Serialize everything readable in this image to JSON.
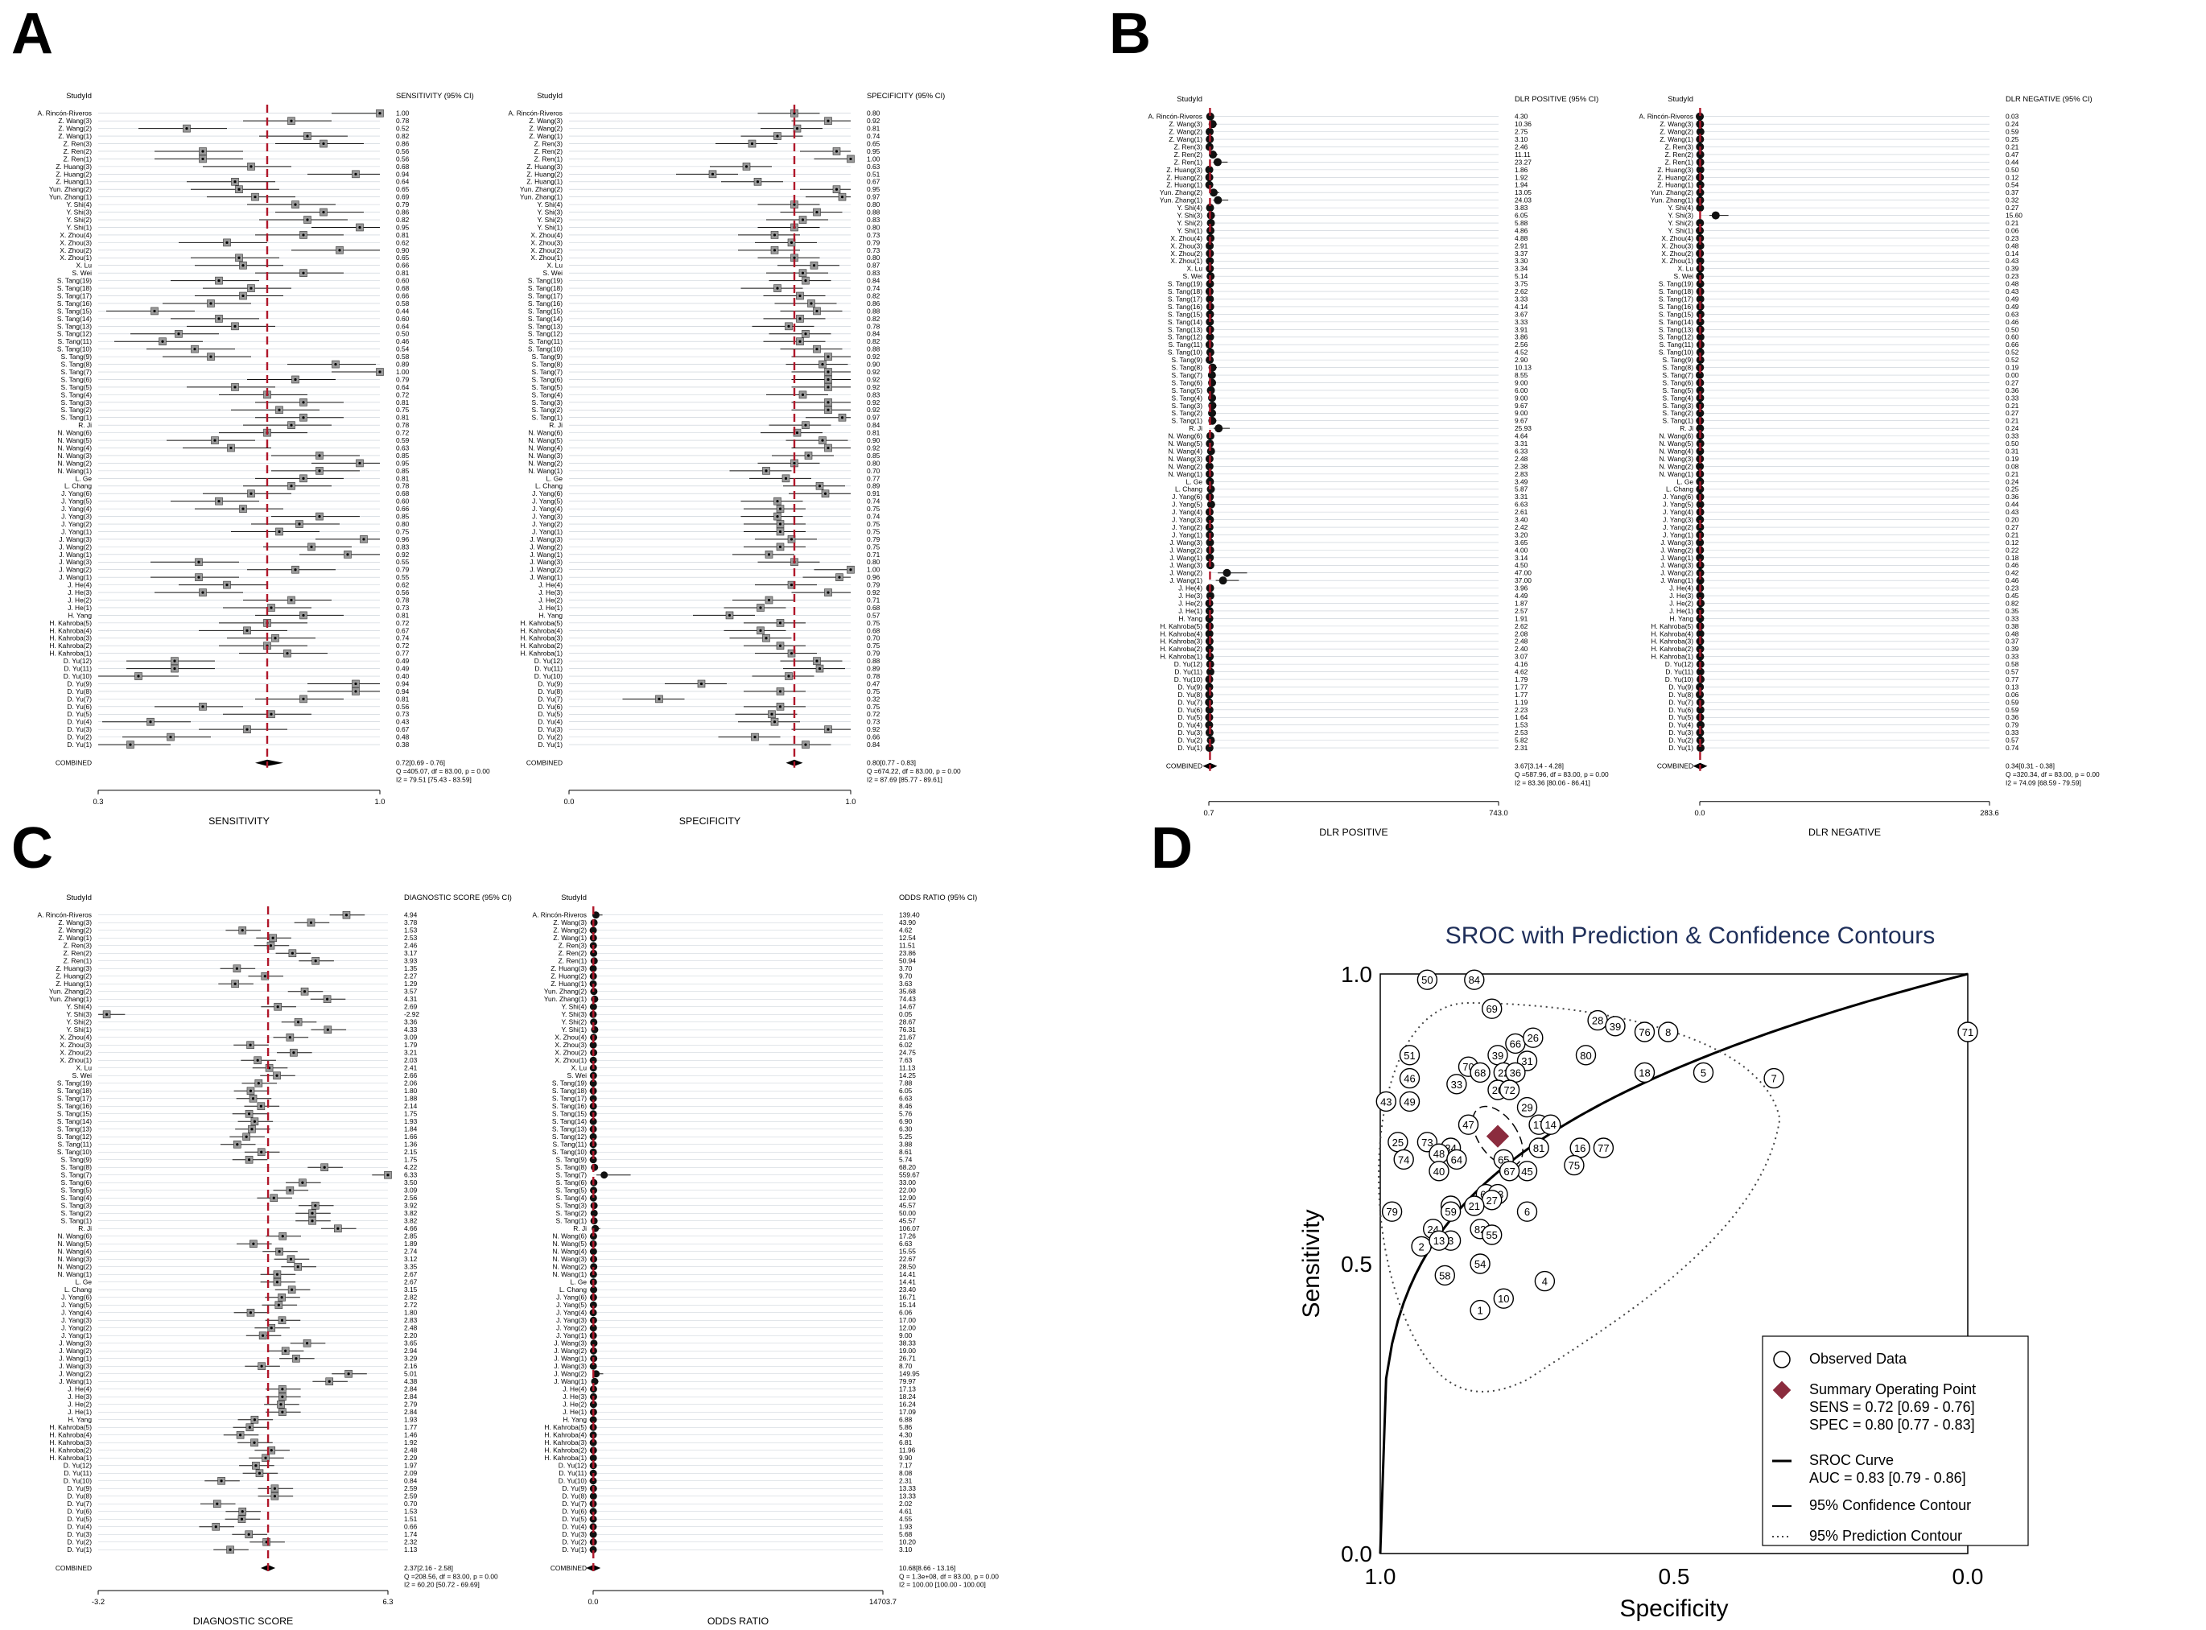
{
  "panels": {
    "A": "A",
    "B": "B",
    "C": "C",
    "D": "D"
  },
  "study_ids": [
    "A. Rincón-Riveros",
    "Z. Wang(3)",
    "Z. Wang(2)",
    "Z. Wang(1)",
    "Z. Ren(3)",
    "Z. Ren(2)",
    "Z. Ren(1)",
    "Z. Huang(3)",
    "Z. Huang(2)",
    "Z. Huang(1)",
    "Yun. Zhang(2)",
    "Yun. Zhang(1)",
    "Y. Shi(4)",
    "Y. Shi(3)",
    "Y. Shi(2)",
    "Y. Shi(1)",
    "X. Zhou(4)",
    "X. Zhou(3)",
    "X. Zhou(2)",
    "X. Zhou(1)",
    "X. Lu",
    "S. Wei",
    "S. Tang(19)",
    "S. Tang(18)",
    "S. Tang(17)",
    "S. Tang(16)",
    "S. Tang(15)",
    "S. Tang(14)",
    "S. Tang(13)",
    "S. Tang(12)",
    "S. Tang(11)",
    "S. Tang(10)",
    "S. Tang(9)",
    "S. Tang(8)",
    "S. Tang(7)",
    "S. Tang(6)",
    "S. Tang(5)",
    "S. Tang(4)",
    "S. Tang(3)",
    "S. Tang(2)",
    "S. Tang(1)",
    "R. Ji",
    "N. Wang(6)",
    "N. Wang(5)",
    "N. Wang(4)",
    "N. Wang(3)",
    "N. Wang(2)",
    "N. Wang(1)",
    "L. Ge",
    "L. Chang",
    "J. Yang(6)",
    "J. Yang(5)",
    "J. Yang(4)",
    "J. Yang(3)",
    "J. Yang(2)",
    "J. Yang(1)",
    "J. Wang(3)",
    "J. Wang(2)",
    "J. Wang(1)",
    "J. Wang(3)",
    "J. Wang(2)",
    "J. Wang(1)",
    "J. He(4)",
    "J. He(3)",
    "J. He(2)",
    "J. He(1)",
    "H. Yang",
    "H. Kahroba(5)",
    "H. Kahroba(4)",
    "H. Kahroba(3)",
    "H. Kahroba(2)",
    "H. Kahroba(1)",
    "D. Yu(12)",
    "D. Yu(11)",
    "D. Yu(10)",
    "D. Yu(9)",
    "D. Yu(8)",
    "D. Yu(7)",
    "D. Yu(6)",
    "D. Yu(5)",
    "D. Yu(4)",
    "D. Yu(3)",
    "D. Yu(2)",
    "D. Yu(1)"
  ],
  "chart_data": [
    {
      "type": "forest",
      "panel": "A-left",
      "column_header": "StudyId",
      "stat_header": "SENSITIVITY (95% CI)",
      "xlabel": "SENSITIVITY",
      "xlim": [
        0.3,
        1.0
      ],
      "xticks": [
        "0.3",
        "1.0"
      ],
      "summary_label": "COMBINED",
      "pooled": 0.72,
      "pooled_ci": [
        0.69,
        0.76
      ],
      "pooled_text": "0.72[0.69 - 0.76]",
      "stats_text": [
        "Q =405.07, df = 83.00, p = 0.00",
        "I2 = 79.51 [75.43 - 83.59]"
      ],
      "values": [
        1.0,
        0.78,
        0.52,
        0.82,
        0.86,
        0.56,
        0.56,
        0.68,
        0.94,
        0.64,
        0.65,
        0.69,
        0.79,
        0.86,
        0.82,
        0.95,
        0.81,
        0.62,
        0.9,
        0.65,
        0.66,
        0.81,
        0.6,
        0.68,
        0.66,
        0.58,
        0.44,
        0.6,
        0.64,
        0.5,
        0.46,
        0.54,
        0.58,
        0.89,
        1.0,
        0.79,
        0.64,
        0.72,
        0.81,
        0.75,
        0.81,
        0.78,
        0.72,
        0.59,
        0.63,
        0.85,
        0.95,
        0.85,
        0.81,
        0.78,
        0.68,
        0.6,
        0.66,
        0.85,
        0.8,
        0.75,
        0.96,
        0.83,
        0.92,
        0.55,
        0.79,
        0.55,
        0.62,
        0.56,
        0.78,
        0.73,
        0.81,
        0.72,
        0.67,
        0.74,
        0.72,
        0.77,
        0.49,
        0.49,
        0.4,
        0.94,
        0.94,
        0.81,
        0.56,
        0.73,
        0.43,
        0.67,
        0.48,
        0.38
      ]
    },
    {
      "type": "forest",
      "panel": "A-right",
      "column_header": "StudyId",
      "stat_header": "SPECIFICITY (95% CI)",
      "xlabel": "SPECIFICITY",
      "xlim": [
        0.0,
        1.0
      ],
      "xticks": [
        "0.0",
        "1.0"
      ],
      "summary_label": "COMBINED",
      "pooled": 0.8,
      "pooled_ci": [
        0.77,
        0.83
      ],
      "pooled_text": "0.80[0.77 - 0.83]",
      "stats_text": [
        "Q =674.22, df = 83.00, p = 0.00",
        "I2 = 87.69 [85.77 - 89.61]"
      ],
      "values": [
        0.8,
        0.92,
        0.81,
        0.74,
        0.65,
        0.95,
        1.0,
        0.63,
        0.51,
        0.67,
        0.95,
        0.97,
        0.8,
        0.88,
        0.83,
        0.8,
        0.73,
        0.79,
        0.73,
        0.8,
        0.87,
        0.83,
        0.84,
        0.74,
        0.82,
        0.86,
        0.88,
        0.82,
        0.78,
        0.84,
        0.82,
        0.88,
        0.92,
        0.9,
        0.92,
        0.92,
        0.92,
        0.83,
        0.92,
        0.92,
        0.97,
        0.84,
        0.81,
        0.9,
        0.92,
        0.85,
        0.8,
        0.7,
        0.77,
        0.89,
        0.91,
        0.74,
        0.75,
        0.74,
        0.75,
        0.75,
        0.79,
        0.75,
        0.71,
        0.8,
        1.0,
        0.96,
        0.79,
        0.92,
        0.71,
        0.68,
        0.57,
        0.75,
        0.68,
        0.7,
        0.75,
        0.79,
        0.88,
        0.89,
        0.78,
        0.47,
        0.75,
        0.32,
        0.75,
        0.72,
        0.73,
        0.92,
        0.66,
        0.84
      ]
    },
    {
      "type": "forest",
      "panel": "B-left",
      "column_header": "StudyId",
      "stat_header": "DLR POSITIVE (95% CI)",
      "xlabel": "DLR POSITIVE",
      "xlim": [
        0.7,
        743.0
      ],
      "xticks": [
        "0.7",
        "743.0"
      ],
      "summary_label": "COMBINED",
      "pooled": 3.67,
      "pooled_ci": [
        3.14,
        4.28
      ],
      "pooled_text": "3.67[3.14 - 4.28]",
      "stats_text": [
        "Q =587.96, df = 83.00, p = 0.00",
        "I2 = 83.36 [80.06 - 86.41]"
      ],
      "values": [
        4.3,
        10.36,
        2.75,
        3.1,
        2.46,
        11.11,
        23.27,
        1.86,
        1.92,
        1.94,
        13.05,
        24.03,
        3.83,
        6.05,
        5.88,
        4.86,
        4.88,
        2.91,
        3.37,
        3.3,
        3.34,
        5.14,
        3.75,
        2.62,
        3.33,
        4.14,
        3.67,
        3.33,
        3.91,
        3.86,
        2.56,
        4.52,
        2.9,
        10.13,
        8.55,
        9.0,
        6.0,
        9.0,
        9.67,
        9.0,
        9.67,
        25.93,
        4.64,
        3.31,
        6.33,
        2.48,
        2.38,
        2.83,
        3.49,
        5.87,
        3.31,
        6.63,
        2.61,
        3.4,
        2.42,
        3.2,
        3.65,
        4.0,
        3.14,
        4.5,
        47.0,
        37.0,
        3.96,
        4.49,
        1.87,
        2.57,
        1.91,
        2.62,
        2.08,
        2.48,
        2.4,
        3.07,
        4.16,
        4.62,
        1.79,
        1.77,
        1.77,
        1.19,
        2.23,
        1.64,
        1.53,
        2.53,
        5.82,
        2.31
      ]
    },
    {
      "type": "forest",
      "panel": "B-right",
      "column_header": "StudyId",
      "stat_header": "DLR NEGATIVE (95% CI)",
      "xlabel": "DLR NEGATIVE",
      "xlim": [
        0.0,
        283.6
      ],
      "xticks": [
        "0.0",
        "283.6"
      ],
      "summary_label": "COMBINED",
      "pooled": 0.34,
      "pooled_ci": [
        0.31,
        0.38
      ],
      "pooled_text": "0.34[0.31 - 0.38]",
      "stats_text": [
        "Q =320.34, df = 83.00, p = 0.00",
        "I2 = 74.09 [68.59 - 79.59]"
      ],
      "values": [
        0.03,
        0.24,
        0.59,
        0.25,
        0.21,
        0.47,
        0.44,
        0.5,
        0.12,
        0.54,
        0.37,
        0.32,
        0.27,
        15.6,
        0.21,
        0.06,
        0.23,
        0.48,
        0.14,
        0.43,
        0.39,
        0.23,
        0.48,
        0.43,
        0.49,
        0.49,
        0.63,
        0.46,
        0.5,
        0.6,
        0.66,
        0.52,
        0.52,
        0.19,
        0.0,
        0.27,
        0.36,
        0.33,
        0.21,
        0.27,
        0.21,
        0.24,
        0.33,
        0.5,
        0.31,
        0.19,
        0.08,
        0.21,
        0.24,
        0.25,
        0.36,
        0.44,
        0.43,
        0.2,
        0.27,
        0.21,
        0.12,
        0.22,
        0.18,
        0.46,
        0.42,
        0.46,
        0.23,
        0.45,
        0.82,
        0.35,
        0.33,
        0.38,
        0.48,
        0.37,
        0.39,
        0.33,
        0.58,
        0.57,
        0.77,
        0.13,
        0.06,
        0.59,
        0.59,
        0.36,
        0.79,
        0.33,
        0.57,
        0.74
      ]
    },
    {
      "type": "forest",
      "panel": "C-left",
      "column_header": "StudyId",
      "stat_header": "DIAGNOSTIC SCORE (95% CI)",
      "xlabel": "DIAGNOSTIC SCORE",
      "xlim": [
        -3.2,
        6.3
      ],
      "xticks": [
        "-3.2",
        "6.3"
      ],
      "summary_label": "COMBINED",
      "pooled": 2.37,
      "pooled_ci": [
        2.16,
        2.58
      ],
      "pooled_text": "2.37[2.16 - 2.58]",
      "stats_text": [
        "Q =208.56, df = 83.00, p = 0.00",
        "I2 = 60.20 [50.72 - 69.69]"
      ],
      "values": [
        4.94,
        3.78,
        1.53,
        2.53,
        2.46,
        3.17,
        3.93,
        1.35,
        2.27,
        1.29,
        3.57,
        4.31,
        2.69,
        -2.92,
        3.36,
        4.33,
        3.09,
        1.79,
        3.21,
        2.03,
        2.41,
        2.66,
        2.06,
        1.8,
        1.88,
        2.14,
        1.75,
        1.93,
        1.84,
        1.66,
        1.36,
        2.15,
        1.75,
        4.22,
        6.33,
        3.5,
        3.09,
        2.56,
        3.92,
        3.82,
        3.82,
        4.66,
        2.85,
        1.89,
        2.74,
        3.12,
        3.35,
        2.67,
        2.67,
        3.15,
        2.82,
        2.72,
        1.8,
        2.83,
        2.48,
        2.2,
        3.65,
        2.94,
        3.29,
        2.16,
        5.01,
        4.38,
        2.84,
        2.84,
        2.79,
        2.84,
        1.93,
        1.77,
        1.46,
        1.92,
        2.48,
        2.29,
        1.97,
        2.09,
        0.84,
        2.59,
        2.59,
        0.7,
        1.53,
        1.51,
        0.66,
        1.74,
        2.32,
        1.13
      ]
    },
    {
      "type": "forest",
      "panel": "C-right",
      "column_header": "StudyId",
      "stat_header": "ODDS RATIO (95% CI)",
      "xlabel": "ODDS RATIO",
      "xlim": [
        0.0,
        14703.7
      ],
      "xticks": [
        "0.0",
        "14703.7"
      ],
      "summary_label": "COMBINED",
      "pooled": 10.68,
      "pooled_ci": [
        8.66,
        13.16
      ],
      "pooled_text": "10.68[8.66 - 13.16]",
      "stats_text": [
        "Q = 1.3e+08, df = 83.00, p = 0.00",
        "I2 = 100.00 [100.00 - 100.00]"
      ],
      "values": [
        139.4,
        43.9,
        4.62,
        12.54,
        11.51,
        23.86,
        50.94,
        3.7,
        9.7,
        3.63,
        35.68,
        74.43,
        14.67,
        0.05,
        28.67,
        76.31,
        21.67,
        6.02,
        24.75,
        7.63,
        11.13,
        14.25,
        7.88,
        6.05,
        6.63,
        8.46,
        5.76,
        6.9,
        6.3,
        5.25,
        3.88,
        8.61,
        5.74,
        68.2,
        559.67,
        33.0,
        22.0,
        12.9,
        45.57,
        50.0,
        45.57,
        106.07,
        17.26,
        6.63,
        15.55,
        22.67,
        28.5,
        14.41,
        14.41,
        23.4,
        16.71,
        15.14,
        6.06,
        17.0,
        12.0,
        9.0,
        38.33,
        19.0,
        26.71,
        8.7,
        149.95,
        79.97,
        17.13,
        18.24,
        16.24,
        17.09,
        6.88,
        5.86,
        4.3,
        6.81,
        11.96,
        9.9,
        7.17,
        8.08,
        2.31,
        13.33,
        13.33,
        2.02,
        4.61,
        4.55,
        1.93,
        5.68,
        10.2,
        3.1
      ]
    },
    {
      "type": "scatter",
      "panel": "D",
      "title": "SROC with Prediction & Confidence Contours",
      "xlabel": "Specificity",
      "ylabel": "Sensitivity",
      "xlim": [
        1.0,
        0.0
      ],
      "ylim": [
        0.0,
        1.0
      ],
      "xticks": [
        "1.0",
        "0.5",
        "0.0"
      ],
      "yticks": [
        "0.0",
        "0.5",
        "1.0"
      ],
      "summary_point": {
        "spec": 0.8,
        "sens": 0.72
      },
      "legend": [
        {
          "label": "Observed Data"
        },
        {
          "label": "Summary Operating Point",
          "lines": [
            "SENS = 0.72 [0.69 - 0.76]",
            "SPEC = 0.80 [0.77 - 0.83]"
          ]
        },
        {
          "label": "SROC Curve",
          "lines": [
            "AUC = 0.83 [0.79 - 0.86]"
          ]
        },
        {
          "label": "95% Confidence Contour"
        },
        {
          "label": "95% Prediction Contour"
        }
      ],
      "points": [
        {
          "n": 50,
          "spec": 0.92,
          "sens": 0.99
        },
        {
          "n": 84,
          "spec": 0.84,
          "sens": 0.99
        },
        {
          "n": 69,
          "spec": 0.81,
          "sens": 0.94
        },
        {
          "n": 28,
          "spec": 0.63,
          "sens": 0.92
        },
        {
          "n": 39,
          "spec": 0.6,
          "sens": 0.91
        },
        {
          "n": 76,
          "spec": 0.55,
          "sens": 0.9
        },
        {
          "n": 8,
          "spec": 0.51,
          "sens": 0.9
        },
        {
          "n": 66,
          "spec": 0.77,
          "sens": 0.88
        },
        {
          "n": 26,
          "spec": 0.74,
          "sens": 0.89
        },
        {
          "n": 71,
          "spec": 0.0,
          "sens": 0.9
        },
        {
          "n": 51,
          "spec": 0.95,
          "sens": 0.86
        },
        {
          "n": 39,
          "spec": 0.8,
          "sens": 0.86
        },
        {
          "n": 31,
          "spec": 0.75,
          "sens": 0.85
        },
        {
          "n": 80,
          "spec": 0.65,
          "sens": 0.86
        },
        {
          "n": 70,
          "spec": 0.85,
          "sens": 0.84
        },
        {
          "n": 68,
          "spec": 0.83,
          "sens": 0.83
        },
        {
          "n": 22,
          "spec": 0.79,
          "sens": 0.83
        },
        {
          "n": 36,
          "spec": 0.77,
          "sens": 0.83
        },
        {
          "n": 18,
          "spec": 0.55,
          "sens": 0.83
        },
        {
          "n": 5,
          "spec": 0.45,
          "sens": 0.83
        },
        {
          "n": 46,
          "spec": 0.95,
          "sens": 0.82
        },
        {
          "n": 33,
          "spec": 0.87,
          "sens": 0.81
        },
        {
          "n": 20,
          "spec": 0.8,
          "sens": 0.8
        },
        {
          "n": 72,
          "spec": 0.78,
          "sens": 0.8
        },
        {
          "n": 7,
          "spec": 0.33,
          "sens": 0.82
        },
        {
          "n": 43,
          "spec": 0.99,
          "sens": 0.78
        },
        {
          "n": 49,
          "spec": 0.95,
          "sens": 0.78
        },
        {
          "n": 29,
          "spec": 0.75,
          "sens": 0.77
        },
        {
          "n": 47,
          "spec": 0.85,
          "sens": 0.74
        },
        {
          "n": 17,
          "spec": 0.73,
          "sens": 0.74
        },
        {
          "n": 14,
          "spec": 0.71,
          "sens": 0.74
        },
        {
          "n": 25,
          "spec": 0.97,
          "sens": 0.71
        },
        {
          "n": 73,
          "spec": 0.92,
          "sens": 0.71
        },
        {
          "n": 34,
          "spec": 0.88,
          "sens": 0.7
        },
        {
          "n": 81,
          "spec": 0.73,
          "sens": 0.7
        },
        {
          "n": 16,
          "spec": 0.66,
          "sens": 0.7
        },
        {
          "n": 77,
          "spec": 0.62,
          "sens": 0.7
        },
        {
          "n": 48,
          "spec": 0.9,
          "sens": 0.69
        },
        {
          "n": 74,
          "spec": 0.96,
          "sens": 0.68
        },
        {
          "n": 64,
          "spec": 0.87,
          "sens": 0.68
        },
        {
          "n": 65,
          "spec": 0.79,
          "sens": 0.68
        },
        {
          "n": 75,
          "spec": 0.67,
          "sens": 0.67
        },
        {
          "n": 45,
          "spec": 0.75,
          "sens": 0.66
        },
        {
          "n": 67,
          "spec": 0.78,
          "sens": 0.66
        },
        {
          "n": 40,
          "spec": 0.9,
          "sens": 0.66
        },
        {
          "n": 62,
          "spec": 0.82,
          "sens": 0.62
        },
        {
          "n": 63,
          "spec": 0.8,
          "sens": 0.62
        },
        {
          "n": 30,
          "spec": 0.88,
          "sens": 0.6
        },
        {
          "n": 27,
          "spec": 0.81,
          "sens": 0.61
        },
        {
          "n": 6,
          "spec": 0.75,
          "sens": 0.59
        },
        {
          "n": 79,
          "spec": 0.98,
          "sens": 0.59
        },
        {
          "n": 59,
          "spec": 0.88,
          "sens": 0.59
        },
        {
          "n": 21,
          "spec": 0.84,
          "sens": 0.6
        },
        {
          "n": 82,
          "spec": 0.83,
          "sens": 0.56
        },
        {
          "n": 24,
          "spec": 0.91,
          "sens": 0.56
        },
        {
          "n": 55,
          "spec": 0.81,
          "sens": 0.55
        },
        {
          "n": 2,
          "spec": 0.93,
          "sens": 0.53
        },
        {
          "n": 3,
          "spec": 0.88,
          "sens": 0.54
        },
        {
          "n": 13,
          "spec": 0.9,
          "sens": 0.54
        },
        {
          "n": 54,
          "spec": 0.83,
          "sens": 0.5
        },
        {
          "n": 58,
          "spec": 0.89,
          "sens": 0.48
        },
        {
          "n": 4,
          "spec": 0.72,
          "sens": 0.47
        },
        {
          "n": 10,
          "spec": 0.79,
          "sens": 0.44
        },
        {
          "n": 1,
          "spec": 0.83,
          "sens": 0.42
        }
      ]
    }
  ]
}
